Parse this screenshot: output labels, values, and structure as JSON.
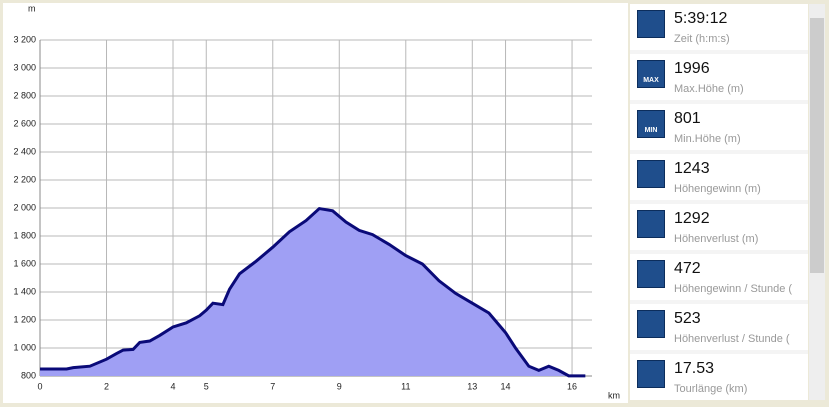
{
  "chart_data": {
    "type": "area",
    "y_unit": "m",
    "x_unit": "km",
    "x": [
      0,
      0.8,
      1,
      1.5,
      2,
      2.3,
      2.5,
      2.8,
      3,
      3.3,
      3.6,
      4,
      4.4,
      4.8,
      5,
      5.2,
      5.5,
      5.7,
      6,
      6.5,
      7,
      7.5,
      8,
      8.4,
      8.8,
      9.2,
      9.6,
      10,
      10.5,
      11,
      11.5,
      12,
      12.5,
      13,
      13.5,
      14,
      14.3,
      14.7,
      15,
      15.3,
      15.6,
      15.9,
      16.4
    ],
    "values": [
      850,
      850,
      860,
      870,
      920,
      960,
      985,
      990,
      1040,
      1050,
      1090,
      1150,
      1180,
      1230,
      1270,
      1320,
      1310,
      1420,
      1530,
      1620,
      1720,
      1830,
      1910,
      1996,
      1980,
      1900,
      1840,
      1810,
      1740,
      1660,
      1600,
      1480,
      1390,
      1320,
      1250,
      1110,
      1000,
      870,
      840,
      870,
      840,
      801,
      801
    ],
    "xlim": [
      0,
      16.6
    ],
    "xticks": [
      0,
      2,
      4,
      5,
      7,
      9,
      11,
      13,
      14,
      16
    ],
    "ylim": [
      800,
      3200
    ],
    "yticks": [
      800,
      {
        "value": 1000,
        "label": "1 000"
      },
      {
        "value": 1200,
        "label": "1 200"
      },
      {
        "value": 1400,
        "label": "1 400"
      },
      {
        "value": 1600,
        "label": "1 600"
      },
      {
        "value": 1800,
        "label": "1 800"
      },
      {
        "value": 2000,
        "label": "2 000"
      },
      {
        "value": 2200,
        "label": "2 200"
      },
      {
        "value": 2400,
        "label": "2 400"
      },
      {
        "value": 2600,
        "label": "2 600"
      },
      {
        "value": 2800,
        "label": "2 800"
      },
      {
        "value": 3000,
        "label": "3 000"
      },
      {
        "value": 3200,
        "label": "3 200"
      }
    ],
    "grid": true,
    "color": "#9f9ff4",
    "line_color": "#0a0a78"
  },
  "stats": [
    {
      "value": "5:39:12",
      "label": "Zeit (h:m:s)"
    },
    {
      "value": "1996",
      "label": "Max.Höhe (m)",
      "icon": "MAX"
    },
    {
      "value": "801",
      "label": "Min.Höhe (m)",
      "icon": "MIN"
    },
    {
      "value": "1243",
      "label": "Höhengewinn (m)"
    },
    {
      "value": "1292",
      "label": "Höhenverlust (m)"
    },
    {
      "value": "472",
      "label": "Höhengewinn  /  Stunde ("
    },
    {
      "value": "523",
      "label": "Höhenverlust  /  Stunde ("
    },
    {
      "value": "17.53",
      "label": "Tourlänge (km)"
    }
  ]
}
